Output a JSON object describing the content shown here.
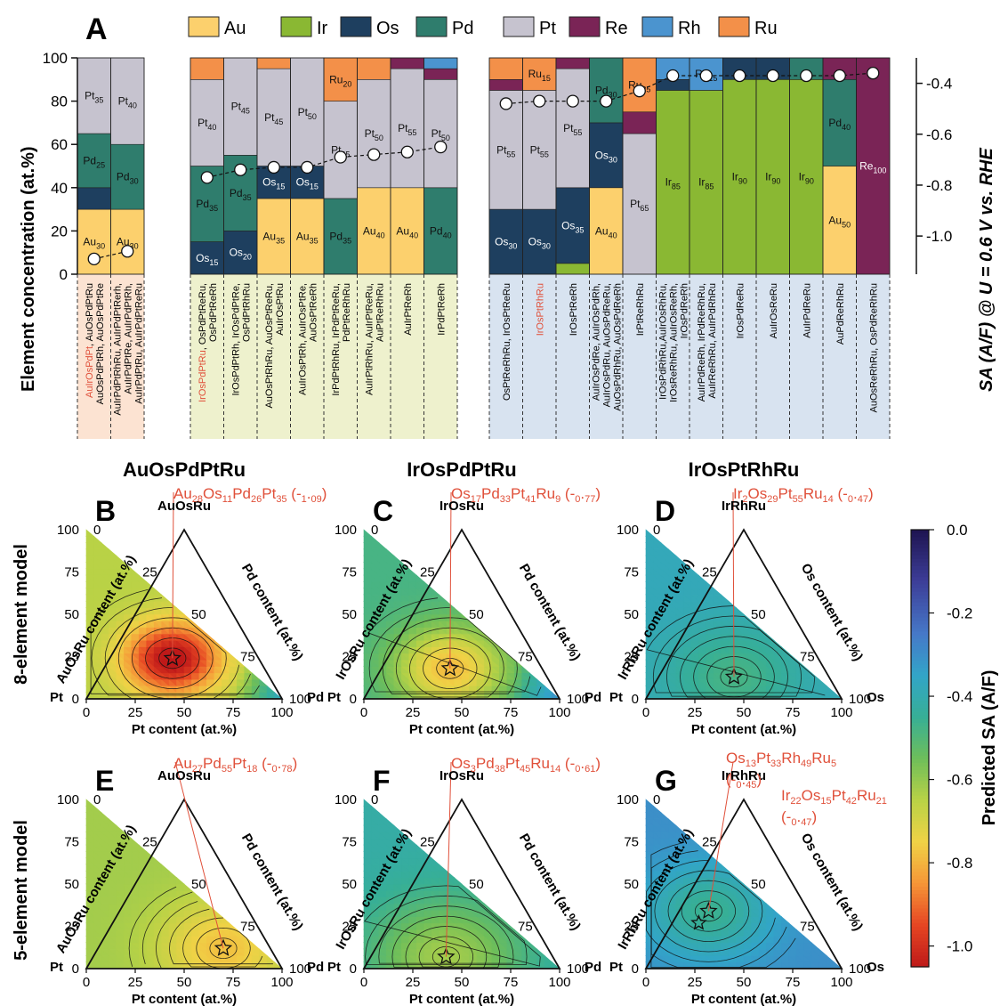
{
  "panel_a": {
    "letter": "A",
    "y_left_label": "Element concentration (at.%)",
    "y_right_label": "SA (A/F) @ U = 0.6 V vs. RHE",
    "y_left_ticks": [
      "0",
      "20",
      "40",
      "60",
      "80",
      "100"
    ],
    "y_right_ticks": [
      "-0.4",
      "-0.6",
      "-0.8",
      "-1.0"
    ]
  },
  "legend": [
    {
      "name": "Au",
      "color": "#FCD06D"
    },
    {
      "name": "Ir",
      "color": "#8AB833"
    },
    {
      "name": "Os",
      "color": "#1E3F5F"
    },
    {
      "name": "Pd",
      "color": "#2F7D6D"
    },
    {
      "name": "Pt",
      "color": "#C6C3CF"
    },
    {
      "name": "Re",
      "color": "#7A2456"
    },
    {
      "name": "Rh",
      "color": "#4B94CF"
    },
    {
      "name": "Ru",
      "color": "#F39049"
    }
  ],
  "group_bg": [
    "#FCE3D2",
    "#EEF1CD",
    "#D8E3F0"
  ],
  "compositions": [
    {
      "label": "AuIrOsPdPt, AuOsPdPtRu\nAuOsPdPtRh, AuOsPdPtRe",
      "highlight": "AuIrOsPdPt",
      "group": 0
    },
    {
      "label": "AuIrPdPtRhRu, AuIrPdPtRerh,\nAuIrPdPtRe, AuIrPdPtRh,\nAuIrPdPtRu, AuIrPdPtReRu",
      "highlight": "",
      "group": 0
    },
    {
      "label": "IrOsPdPtRu, OsPdPtReRu,\nOsPdPtReRh",
      "highlight": "IrOsPdPtRu",
      "group": 1
    },
    {
      "label": "IrOsPdPtRh, IrOsPdPtRe,\nOsPdPtRhRu",
      "highlight": "",
      "group": 1
    },
    {
      "label": "AuOsPtRhRu, AuOsPtReRu,\nAuIrOsPtRu",
      "highlight": "",
      "group": 1
    },
    {
      "label": "AuIrOsPtRh, AuIrOsPtRe,\nAuOsPtReRh",
      "highlight": "",
      "group": 1
    },
    {
      "label": "IrPdPtRhRu, IrPdPtReRu,\nPdPtReRhRu",
      "highlight": "",
      "group": 1
    },
    {
      "label": "AuIrPtRhRu, AuIrPtReRu,\nAuPtReRhRu",
      "highlight": "",
      "group": 1
    },
    {
      "label": "AuIrPtReRh",
      "highlight": "",
      "group": 1
    },
    {
      "label": "IrPdPtReRh",
      "highlight": "",
      "group": 1
    },
    {
      "label": "OsPtReRhRu, IrOsPtReRu",
      "highlight": "",
      "group": 2
    },
    {
      "label": "IrOsPtRhRu",
      "highlight": "IrOsPtRhRu",
      "group": 2
    },
    {
      "label": "IrOsPtReRh",
      "highlight": "",
      "group": 2
    },
    {
      "label": "AuIrOsPdRe, AuIrOsPdRh,\nAuIrOsPdRu, AuOsPdReRu,\nAuOsPdRhRu, AuOsPdReRh",
      "highlight": "",
      "group": 2
    },
    {
      "label": "IrPtReRhRu",
      "highlight": "",
      "group": 2
    },
    {
      "label": "IrOsPdRhRu,AuIrOsRhRu,\nIrOsReRhRu, AuIrOsReRh,\nIrOsPdReRh",
      "highlight": "",
      "group": 2
    },
    {
      "label": "AuIrPdReRh, IrPdReRhRu,\nAuIrReRhRu, AuIrPdRhRu",
      "highlight": "",
      "group": 2
    },
    {
      "label": "IrOsPdReRu",
      "highlight": "",
      "group": 2
    },
    {
      "label": "AuIrOsReRu",
      "highlight": "",
      "group": 2
    },
    {
      "label": "AuIrPdReRu",
      "highlight": "",
      "group": 2
    },
    {
      "label": "AuPdReRhRu",
      "highlight": "",
      "group": 2
    },
    {
      "label": "AuOsReRhRu, OsPdReRhRu",
      "highlight": "",
      "group": 2
    }
  ],
  "panels": [
    {
      "letter": "B",
      "title": "AuOsPdPtRu",
      "annotation": "Au28Os11Pd26Pt35 (-1.09)",
      "apex": "AuOsRu",
      "left_vertex": "Pt",
      "right_vertex": "Pd",
      "left_axis": "AuOsRu content (at.%)",
      "right_axis": "Pd content (at.%)",
      "bottom_axis": "Pt content (at.%)"
    },
    {
      "letter": "C",
      "title": "IrOsPdPtRu",
      "annotation": "Os17Pd33Pt41Ru9 (-0.77)",
      "apex": "IrOsRu",
      "left_vertex": "Pt",
      "right_vertex": "Pd",
      "left_axis": "IrOsRu content (at.%)",
      "right_axis": "Pd content (at.%)",
      "bottom_axis": "Pt content (at.%)"
    },
    {
      "letter": "D",
      "title": "IrOsPtRhRu",
      "annotation": "Ir2Os29Pt55Ru14 (-0.47)",
      "apex": "IrRhRu",
      "left_vertex": "Pt",
      "right_vertex": "Os",
      "left_axis": "IrRhRu content (at.%)",
      "right_axis": "Os content (at.%)",
      "bottom_axis": "Pt content (at.%)"
    },
    {
      "letter": "E",
      "title": "",
      "annotation": "Au27Pd55Pt18 (-0.78)",
      "apex": "AuOsRu",
      "left_vertex": "Pt",
      "right_vertex": "Pd",
      "left_axis": "AuOsRu content (at.%)",
      "right_axis": "Pd content (at.%)",
      "bottom_axis": "Pt content (at.%)"
    },
    {
      "letter": "F",
      "title": "",
      "annotation": "Os3Pd38Pt45Ru14 (-0.61)",
      "apex": "IrOsRu",
      "left_vertex": "Pt",
      "right_vertex": "Pd",
      "left_axis": "IrOsRu content (at.%)",
      "right_axis": "Pd content (at.%)",
      "bottom_axis": "Pt content (at.%)"
    },
    {
      "letter": "G",
      "title": "",
      "annotation": "Os13Pt33Rh49Ru5\n(-0.45)",
      "annotation2": "Ir22Os15Pt42Ru21\n(-0.47)",
      "apex": "IrRhRu",
      "left_vertex": "Pt",
      "right_vertex": "Os",
      "left_axis": "IrRhRu content (at.%)",
      "right_axis": "Os content (at.%)",
      "bottom_axis": "Pt content (at.%)"
    }
  ],
  "tern_ticks": [
    "0",
    "25",
    "50",
    "75",
    "100"
  ],
  "row_labels": [
    "8-element model",
    "5-element model"
  ],
  "colorbar": {
    "label": "Predicted SA (A/F)",
    "ticks": [
      "0.0",
      "-0.2",
      "-0.4",
      "-0.6",
      "-0.8",
      "-1.0"
    ],
    "range": [
      -1.05,
      0.0
    ]
  },
  "chart_data": [
    {
      "type": "bar",
      "stacked": true,
      "title": "A",
      "ylabel": "Element concentration (at.%)",
      "ylim": [
        0,
        100
      ],
      "y2label": "SA (A/F) @ U = 0.6 V vs. RHE",
      "y2lim": [
        -1.15,
        -0.3
      ],
      "stack_order": [
        "Au",
        "Ir",
        "Os",
        "Pd",
        "Pt",
        "Re",
        "Rh",
        "Ru"
      ],
      "bars": [
        {
          "Au": 30,
          "Os": 10,
          "Pd": 25,
          "Pt": 35
        },
        {
          "Au": 30,
          "Pd": 30,
          "Pt": 40
        },
        {
          "Os": 15,
          "Pd": 35,
          "Pt": 40,
          "Ru": 10
        },
        {
          "Os": 20,
          "Pd": 35,
          "Pt": 45
        },
        {
          "Au": 35,
          "Os": 15,
          "Pt": 45,
          "Ru": 5
        },
        {
          "Au": 35,
          "Os": 15,
          "Pt": 50
        },
        {
          "Pd": 35,
          "Pt": 45,
          "Ru": 20
        },
        {
          "Au": 40,
          "Pt": 50,
          "Ru": 10
        },
        {
          "Au": 40,
          "Pt": 55,
          "Re": 5
        },
        {
          "Pd": 40,
          "Pt": 50,
          "Re": 5,
          "Rh": 5
        },
        {
          "Os": 30,
          "Pt": 55,
          "Re": 5,
          "Ru": 10
        },
        {
          "Os": 30,
          "Pt": 55,
          "Ru": 15
        },
        {
          "Ir": 5,
          "Os": 35,
          "Pt": 55,
          "Re": 5
        },
        {
          "Au": 40,
          "Os": 30,
          "Pd": 30
        },
        {
          "Pt": 65,
          "Re": 10,
          "Ru": 25
        },
        {
          "Ir": 85,
          "Os": 5,
          "Rh": 10
        },
        {
          "Ir": 85,
          "Re": 0,
          "Rh": 15
        },
        {
          "Ir": 90,
          "Os": 10
        },
        {
          "Ir": 90,
          "Os": 10
        },
        {
          "Ir": 90,
          "Pd": 10
        },
        {
          "Au": 50,
          "Pd": 40,
          "Re": 10
        },
        {
          "Re": 100
        }
      ],
      "bar_labels": [
        [
          "Au30",
          "Pd25",
          "Pt35"
        ],
        [
          "Au30",
          "Pd30",
          "Pt40"
        ],
        [
          "Os15",
          "Pd35",
          "Pt40"
        ],
        [
          "Os20",
          "Pd35",
          "Pt45"
        ],
        [
          "Au35",
          "Os15",
          "Pt45"
        ],
        [
          "Au35",
          "Os15",
          "Pt50"
        ],
        [
          "Pd35",
          "Pt45",
          "Ru20"
        ],
        [
          "Au40",
          "Pt50"
        ],
        [
          "Au40",
          "Pt55"
        ],
        [
          "Pd40",
          "Pt50"
        ],
        [
          "Os30",
          "Pt55"
        ],
        [
          "Os30",
          "Pt55",
          "Ru15"
        ],
        [
          "Os35",
          "Pt55"
        ],
        [
          "Au40",
          "Os30",
          "Pd30"
        ],
        [
          "Pt65",
          "Ru25"
        ],
        [
          "Ir85"
        ],
        [
          "Ir85",
          "Rh15"
        ],
        [
          "Ir90"
        ],
        [
          "Ir90"
        ],
        [
          "Ir90"
        ],
        [
          "Au50",
          "Pd40"
        ],
        [
          "Re100"
        ]
      ],
      "sa_values": [
        -1.09,
        -1.06,
        -0.77,
        -0.74,
        -0.73,
        -0.73,
        -0.69,
        -0.68,
        -0.67,
        -0.65,
        -0.48,
        -0.47,
        -0.47,
        -0.47,
        -0.43,
        -0.37,
        -0.37,
        -0.37,
        -0.37,
        -0.37,
        -0.37,
        -0.36
      ]
    },
    {
      "type": "heatmap",
      "subtype": "ternary contour",
      "panels": [
        "B",
        "C",
        "D",
        "E",
        "F",
        "G"
      ],
      "value_range": [
        -1.05,
        0.0
      ],
      "optima": [
        {
          "panel": "B",
          "composition": "Au28Os11Pd26Pt35",
          "sa": -1.09
        },
        {
          "panel": "C",
          "composition": "Os17Pd33Pt41Ru9",
          "sa": -0.77
        },
        {
          "panel": "D",
          "composition": "Ir2Os29Pt55Ru14",
          "sa": -0.47
        },
        {
          "panel": "E",
          "composition": "Au27Pd55Pt18",
          "sa": -0.78
        },
        {
          "panel": "F",
          "composition": "Os3Pd38Pt45Ru14",
          "sa": -0.61
        },
        {
          "panel": "G",
          "composition": "Os13Pt33Rh49Ru5",
          "sa": -0.45
        },
        {
          "panel": "G",
          "composition": "Ir22Os15Pt42Ru21",
          "sa": -0.47
        }
      ]
    }
  ]
}
